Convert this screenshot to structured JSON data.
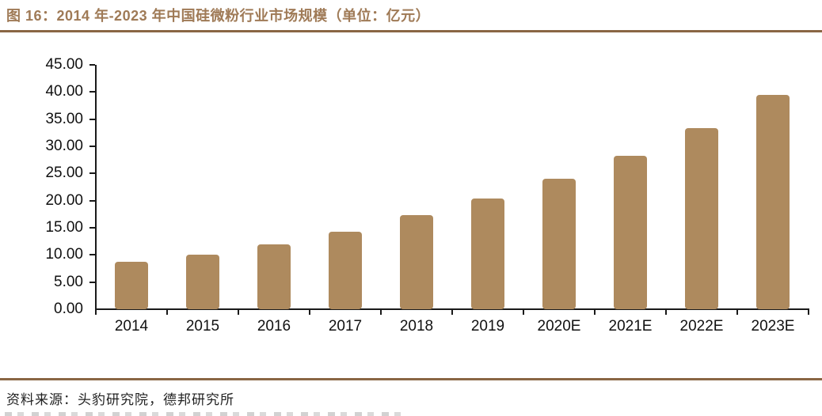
{
  "page": {
    "title": "图 16：2014 年-2023 年中国硅微粉行业市场规模（单位：亿元）",
    "source": "资料来源：头豹研究院，德邦研究所"
  },
  "colors": {
    "bar": "#AE8A5E",
    "title_text": "#9F7A56",
    "rule": "#8A6644",
    "axis": "#1A1A1A",
    "tick_label": "#111111"
  },
  "chart_data": {
    "type": "bar",
    "title": "2014年-2023年中国硅微粉行业市场规模",
    "unit": "亿元",
    "categories": [
      "2014",
      "2015",
      "2016",
      "2017",
      "2018",
      "2019",
      "2020E",
      "2021E",
      "2022E",
      "2023E"
    ],
    "values": [
      8.8,
      10.0,
      12.0,
      14.2,
      17.3,
      20.4,
      24.0,
      28.3,
      33.4,
      39.4
    ],
    "xlabel": "",
    "ylabel": "",
    "ylim": [
      0,
      45
    ],
    "ytick_step": 5,
    "ytick_labels": [
      "0.00",
      "5.00",
      "10.00",
      "15.00",
      "20.00",
      "25.00",
      "30.00",
      "35.00",
      "40.00",
      "45.00"
    ],
    "grid": false,
    "legend_position": "none"
  }
}
